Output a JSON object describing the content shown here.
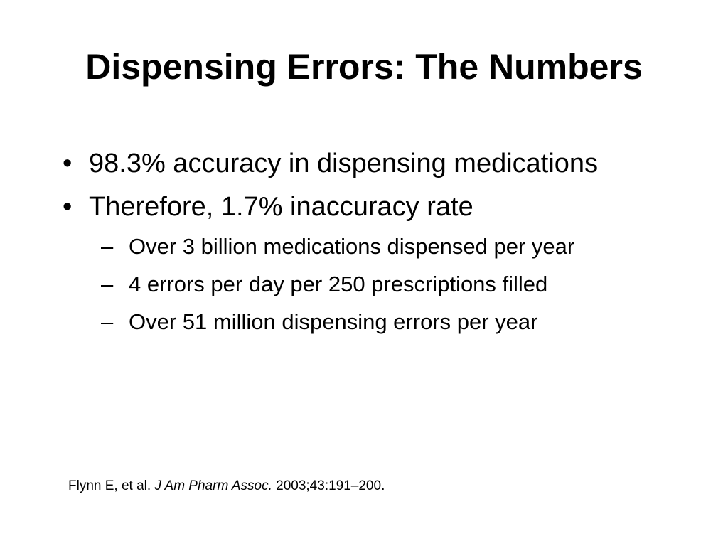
{
  "slide": {
    "title": "Dispensing Errors: The Numbers",
    "bullets": [
      {
        "marker": "•",
        "text": "98.3% accuracy in dispensing medications"
      },
      {
        "marker": "•",
        "text": "Therefore, 1.7% inaccuracy rate"
      }
    ],
    "sub_bullets": [
      {
        "marker": "–",
        "text": "Over 3 billion medications dispensed per year"
      },
      {
        "marker": "–",
        "text": "4 errors per day per 250 prescriptions filled"
      },
      {
        "marker": "–",
        "text": "Over 51 million dispensing errors per year"
      }
    ],
    "citation": {
      "authors": "Flynn E, et al.",
      "journal": "J Am Pharm Assoc.",
      "details": "2003;43:191–200."
    }
  }
}
